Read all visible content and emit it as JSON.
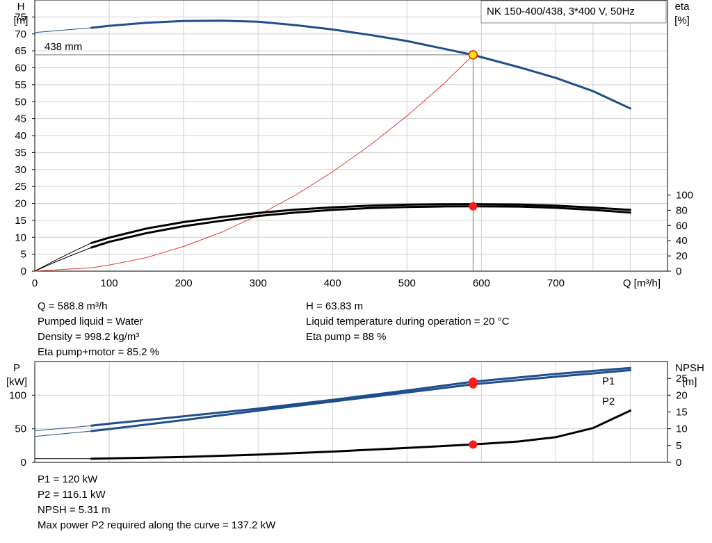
{
  "chart_data": [
    {
      "type": "line",
      "title": "NK 150-400/438, 3*400 V, 50Hz",
      "ylabel": "H",
      "yunit": "[m]",
      "y2label": "eta",
      "y2unit": "[%]",
      "xlabel": "Q [m³/h]",
      "xlim": [
        0,
        850
      ],
      "ylim": [
        0,
        80
      ],
      "y2lim": [
        0,
        100
      ],
      "xticks": [
        0,
        100,
        200,
        300,
        400,
        500,
        600,
        700
      ],
      "yticks": [
        0,
        5,
        10,
        15,
        20,
        25,
        30,
        35,
        40,
        45,
        50,
        55,
        60,
        65,
        70,
        75
      ],
      "y2ticks": [
        0,
        20,
        40,
        60,
        80,
        100
      ],
      "grid": true,
      "curve_label": "438 mm",
      "operating_point": {
        "q": 588.8,
        "h": 63.83,
        "eta": 85.2
      },
      "series": [
        {
          "name": "",
          "axis": "left",
          "color": "#1f4e8c",
          "x": [
            76,
            100,
            150,
            200,
            250,
            300,
            350,
            400,
            450,
            500,
            550,
            588.8,
            650,
            700,
            750,
            800
          ],
          "y": [
            71.8,
            72.4,
            73.3,
            73.8,
            73.9,
            73.6,
            72.6,
            71.3,
            69.7,
            67.9,
            65.6,
            63.8,
            60.2,
            57.0,
            53.1,
            48.0
          ]
        },
        {
          "name": "",
          "axis": "left",
          "color": "#1f4e8c",
          "style": "thin",
          "x": [
            0,
            76
          ],
          "y": [
            70.4,
            71.8
          ]
        },
        {
          "name": "",
          "axis": "left",
          "color": "#e83a3a",
          "style": "thin",
          "x": [
            0,
            76,
            100,
            150,
            200,
            250,
            300,
            350,
            400,
            450,
            500,
            550,
            588.8
          ],
          "y": [
            0,
            1.0,
            1.8,
            4.0,
            7.3,
            11.4,
            16.5,
            22.4,
            29.3,
            37.1,
            45.8,
            55.4,
            63.8
          ]
        },
        {
          "name": "",
          "axis": "right",
          "color": "#000000",
          "x": [
            76,
            100,
            150,
            200,
            250,
            300,
            350,
            400,
            450,
            500,
            550,
            588.8,
            650,
            700,
            750,
            800
          ],
          "y": [
            31,
            38.5,
            50,
            59,
            66,
            72.5,
            77,
            80.5,
            82.8,
            84.2,
            85,
            85.2,
            84.8,
            83.2,
            80.5,
            77
          ]
        },
        {
          "name": "",
          "axis": "right",
          "color": "#000000",
          "x": [
            76,
            100,
            150,
            200,
            250,
            300,
            350,
            400,
            450,
            500,
            550,
            588.8,
            650,
            700,
            750,
            800
          ],
          "y": [
            37,
            44,
            56,
            64.5,
            71,
            76.5,
            80.8,
            83.8,
            86,
            87.3,
            87.9,
            88,
            87.6,
            86,
            83.5,
            80.5
          ]
        },
        {
          "name": "",
          "axis": "right",
          "color": "#000000",
          "style": "thin",
          "x": [
            0,
            25,
            50,
            76
          ],
          "y": [
            0,
            11,
            21,
            31
          ]
        },
        {
          "name": "",
          "axis": "right",
          "color": "#000000",
          "style": "thin",
          "x": [
            0,
            25,
            50,
            76
          ],
          "y": [
            0,
            13,
            25,
            37
          ]
        }
      ]
    },
    {
      "type": "line",
      "ylabel": "P",
      "yunit": "[kW]",
      "y2label": "NPSH",
      "y2unit": "[m]",
      "xlim": [
        0,
        850
      ],
      "ylim": [
        0,
        150
      ],
      "y2lim": [
        0,
        30
      ],
      "yticks": [
        0,
        50,
        100
      ],
      "y2ticks": [
        0,
        5,
        10,
        15,
        20,
        25
      ],
      "grid": true,
      "series": [
        {
          "name": "P1",
          "axis": "left",
          "color": "#1f4e8c",
          "x": [
            76,
            100,
            200,
            300,
            400,
            500,
            588.8,
            700,
            800
          ],
          "y": [
            54.5,
            57.5,
            68.5,
            80,
            93,
            107,
            120,
            131.5,
            140.5
          ]
        },
        {
          "name": "P2",
          "axis": "left",
          "color": "#1f4e8c",
          "x": [
            76,
            100,
            200,
            300,
            400,
            500,
            588.8,
            700,
            800
          ],
          "y": [
            46.5,
            49.5,
            63,
            77,
            90.5,
            104,
            116.1,
            127.5,
            137.2
          ]
        },
        {
          "name": "",
          "axis": "left",
          "color": "#1f4e8c",
          "style": "thin",
          "x": [
            0,
            76
          ],
          "y": [
            47,
            54.5
          ]
        },
        {
          "name": "",
          "axis": "left",
          "color": "#1f4e8c",
          "style": "thin",
          "x": [
            0,
            76
          ],
          "y": [
            38.5,
            46.5
          ]
        },
        {
          "name": "",
          "axis": "right",
          "color": "#000000",
          "x": [
            76,
            200,
            300,
            400,
            500,
            588.8,
            650,
            700,
            750,
            800
          ],
          "y": [
            1.1,
            1.6,
            2.3,
            3.2,
            4.3,
            5.31,
            6.2,
            7.5,
            10.2,
            15.4
          ]
        },
        {
          "name": "",
          "axis": "right",
          "color": "#000000",
          "style": "thin",
          "x": [
            0,
            76
          ],
          "y": [
            1.1,
            1.1
          ]
        }
      ]
    }
  ],
  "info_top_left": [
    "Q = 588.8 m³/h",
    "Pumped liquid = Water",
    "Density = 998.2 kg/m³",
    "Eta pump+motor = 85.2 %"
  ],
  "info_top_right": [
    "H = 63.83 m",
    "Liquid temperature during operation = 20 °C",
    "Eta pump = 88 %"
  ],
  "info_bottom": [
    "P1 = 120 kW",
    "P2 = 116.1 kW",
    "NPSH = 5.31 m",
    "Max power P2 required along the curve = 137.2 kW"
  ]
}
